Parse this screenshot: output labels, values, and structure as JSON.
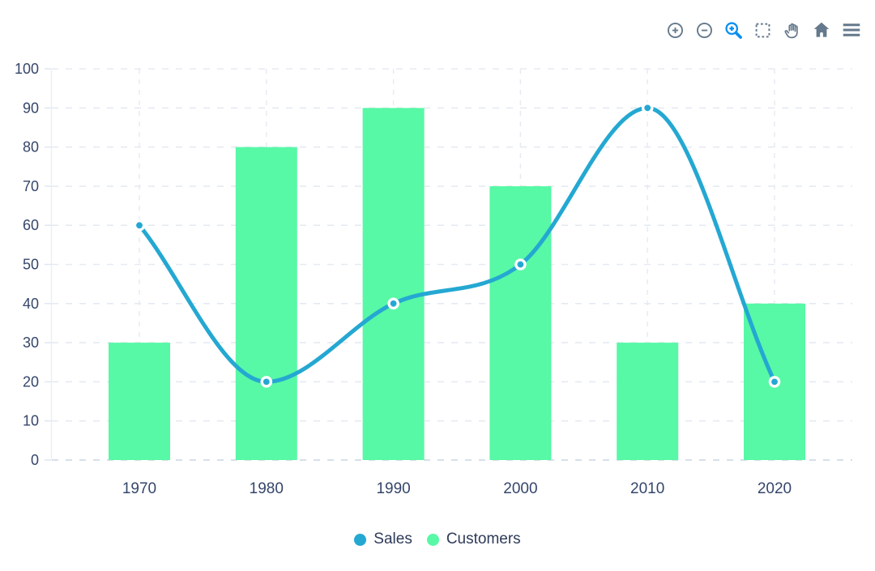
{
  "toolbar": {
    "color": "#64798C",
    "active_color": "#0B8FF2",
    "icons": [
      {
        "name": "zoom-in-icon",
        "active": false
      },
      {
        "name": "zoom-out-icon",
        "active": false
      },
      {
        "name": "selection-zoom-icon",
        "active": true
      },
      {
        "name": "selection-icon",
        "active": false
      },
      {
        "name": "pan-icon",
        "active": false
      },
      {
        "name": "home-icon",
        "active": false
      },
      {
        "name": "menu-icon",
        "active": false
      }
    ]
  },
  "chart_data": {
    "type": "combo",
    "categories": [
      "1970",
      "1980",
      "1990",
      "2000",
      "2010",
      "2020"
    ],
    "series": [
      {
        "name": "Sales",
        "type": "line",
        "curve": "smooth",
        "color": "#24A8D2",
        "marker_stroke": "#FFFFFF",
        "values": [
          60,
          20,
          40,
          50,
          90,
          20
        ]
      },
      {
        "name": "Customers",
        "type": "bar",
        "color": "#57F8A6",
        "values": [
          30,
          80,
          90,
          70,
          30,
          40
        ]
      }
    ],
    "ylim": [
      0,
      100
    ],
    "ytick_step": 10,
    "grid": {
      "horizontal": true,
      "vertical": true,
      "style": "dashed"
    },
    "legend_position": "bottom",
    "axis_label_color": "#35466B"
  }
}
